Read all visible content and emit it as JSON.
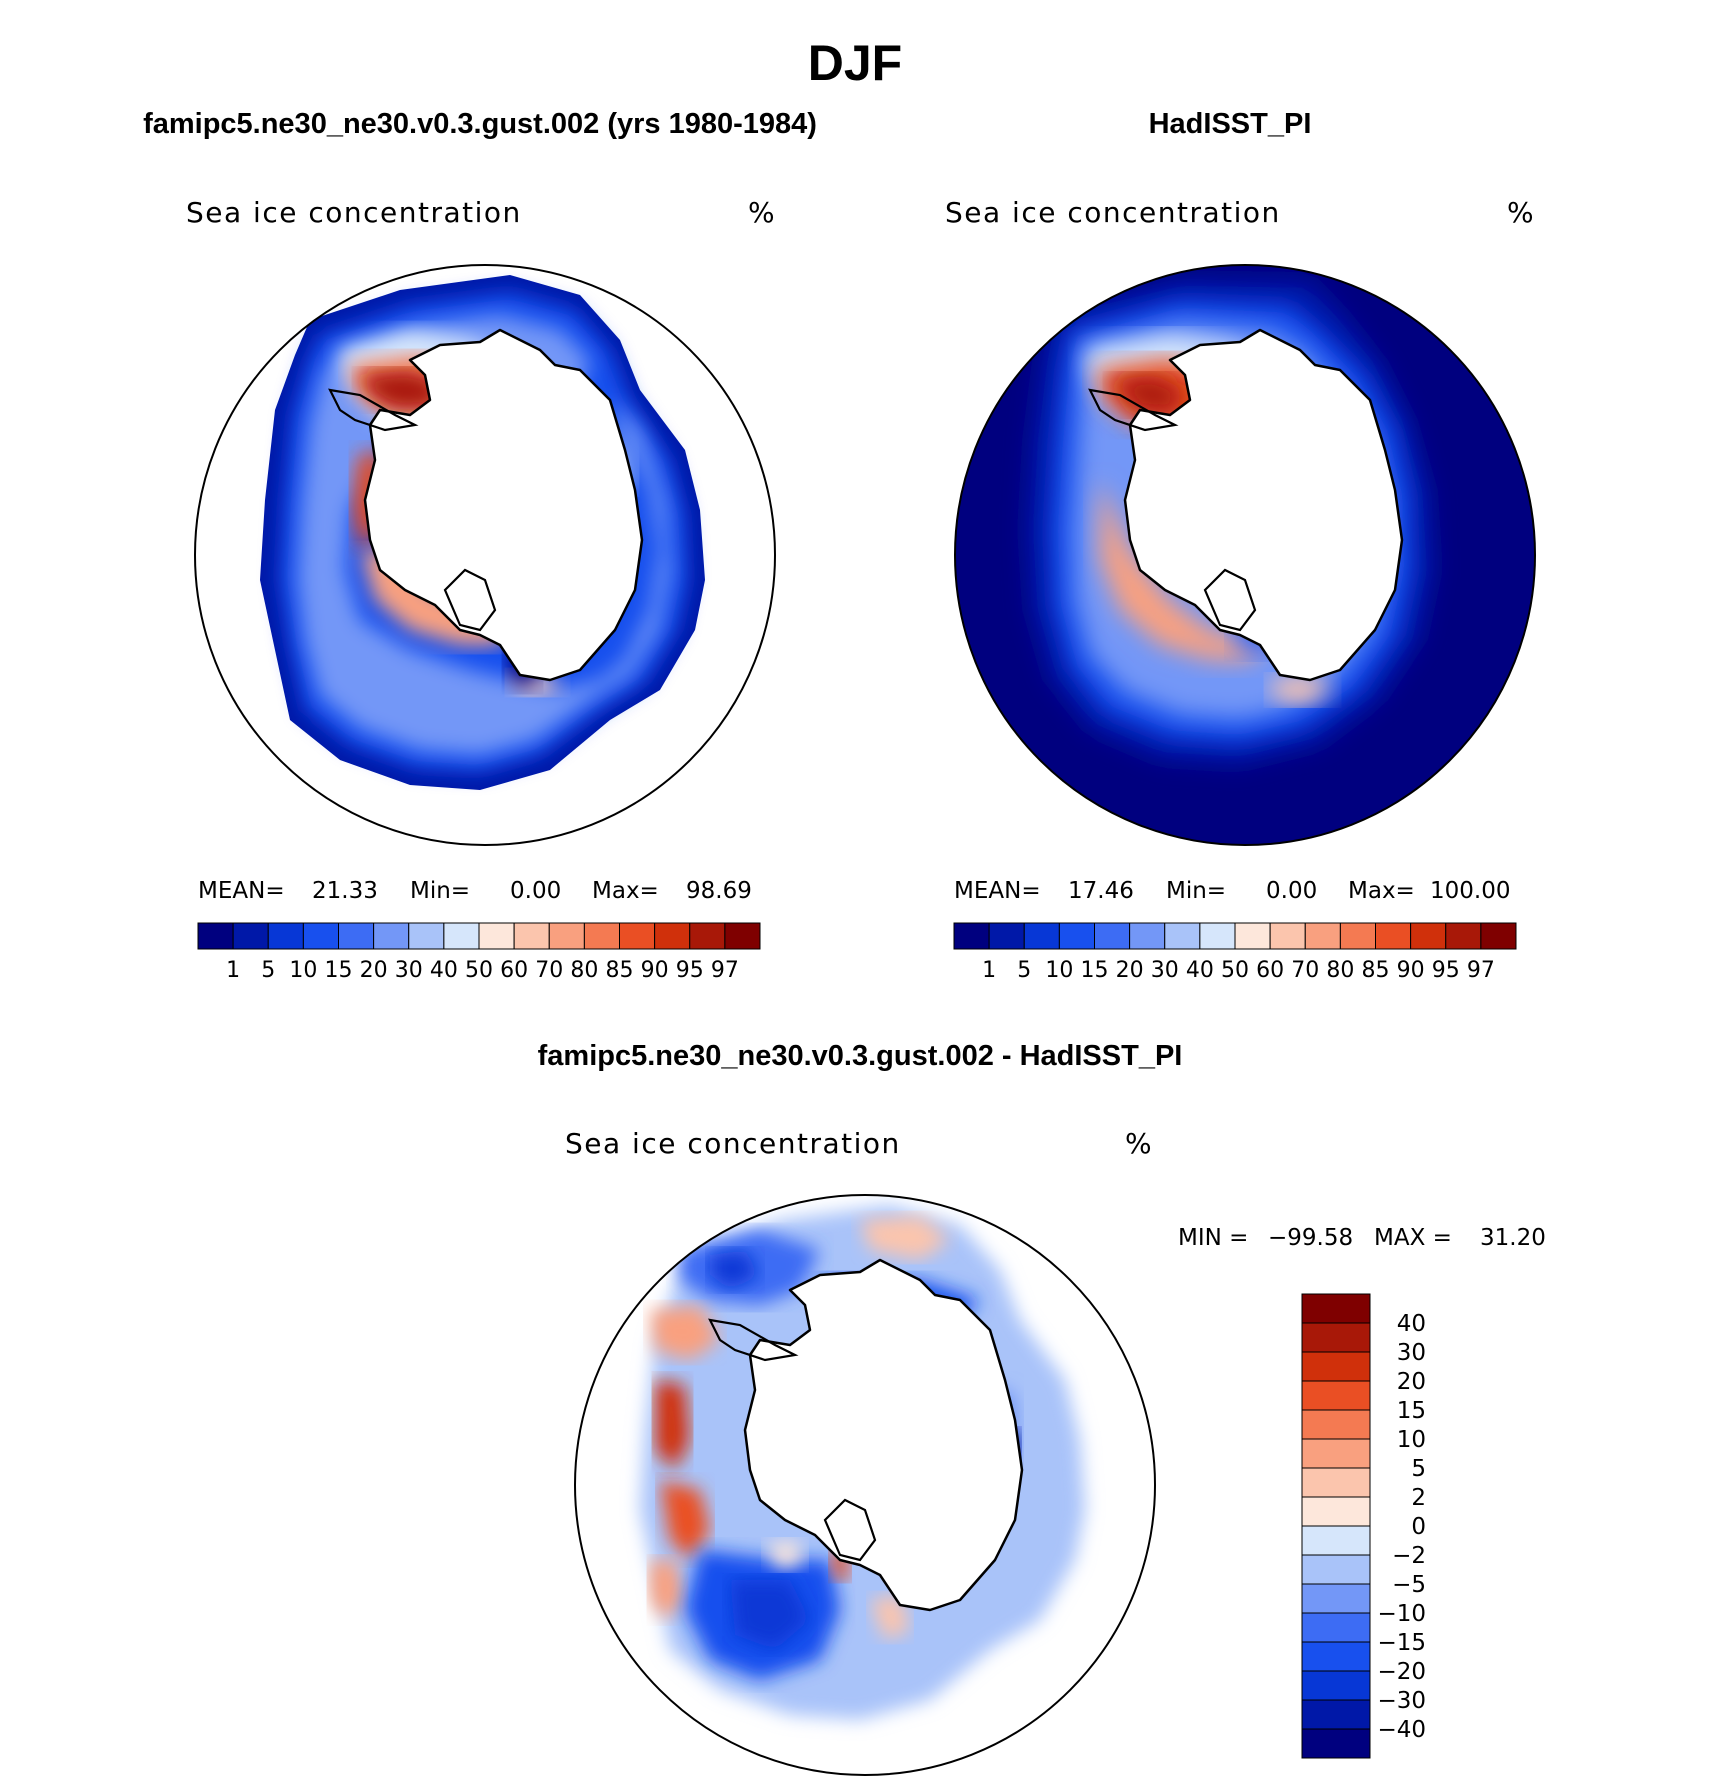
{
  "figure": {
    "title": "DJF"
  },
  "panels": {
    "left": {
      "title": "famipc5.ne30_ne30.v0.3.gust.002 (yrs 1980-1984)",
      "variable": "Sea ice concentration",
      "units": "%",
      "mean_label": "MEAN=",
      "mean_value": "21.33",
      "min_label": "Min=",
      "min_value": "0.00",
      "max_label": "Max=",
      "max_value": "98.69"
    },
    "right": {
      "title": "HadISST_PI",
      "variable": "Sea ice concentration",
      "units": "%",
      "mean_label": "MEAN=",
      "mean_value": "17.46",
      "min_label": "Min=",
      "min_value": "0.00",
      "max_label": "Max=",
      "max_value": "100.00"
    },
    "diff": {
      "title": "famipc5.ne30_ne30.v0.3.gust.002 - HadISST_PI",
      "variable": "Sea ice concentration",
      "units": "%",
      "min_label": "MIN =",
      "min_value": "−99.58",
      "max_label": "MAX =",
      "max_value": "31.20"
    }
  },
  "chart_data": [
    {
      "type": "heatmap",
      "projection": "south polar stereographic",
      "title": "famipc5.ne30_ne30.v0.3.gust.002 (yrs 1980-1984)",
      "variable": "Sea ice concentration",
      "units": "%",
      "stats": {
        "mean": 21.33,
        "min": 0.0,
        "max": 98.69
      },
      "levels": [
        1,
        5,
        10,
        15,
        20,
        30,
        40,
        50,
        60,
        70,
        80,
        85,
        90,
        95,
        97
      ],
      "colors": [
        "#00007f",
        "#0018a8",
        "#0737d6",
        "#1850ee",
        "#3d6cf4",
        "#7397f7",
        "#a9c3f9",
        "#d6e6fb",
        "#fde7db",
        "#fbc5ad",
        "#f9a07f",
        "#f47a52",
        "#ea4f24",
        "#d0300b",
        "#a81808",
        "#7f0000"
      ],
      "legend": "bottom (horizontal color bar)"
    },
    {
      "type": "heatmap",
      "projection": "south polar stereographic",
      "title": "HadISST_PI",
      "variable": "Sea ice concentration",
      "units": "%",
      "stats": {
        "mean": 17.46,
        "min": 0.0,
        "max": 100.0
      },
      "levels": [
        1,
        5,
        10,
        15,
        20,
        30,
        40,
        50,
        60,
        70,
        80,
        85,
        90,
        95,
        97
      ],
      "colors": [
        "#00007f",
        "#0018a8",
        "#0737d6",
        "#1850ee",
        "#3d6cf4",
        "#7397f7",
        "#a9c3f9",
        "#d6e6fb",
        "#fde7db",
        "#fbc5ad",
        "#f9a07f",
        "#f47a52",
        "#ea4f24",
        "#d0300b",
        "#a81808",
        "#7f0000"
      ],
      "legend": "bottom (horizontal color bar)"
    },
    {
      "type": "heatmap",
      "projection": "south polar stereographic",
      "title": "famipc5.ne30_ne30.v0.3.gust.002 - HadISST_PI",
      "variable": "Sea ice concentration",
      "units": "%",
      "stats": {
        "min": -99.58,
        "max": 31.2
      },
      "levels": [
        40,
        30,
        20,
        15,
        10,
        5,
        2,
        0,
        -2,
        -5,
        -10,
        -15,
        -20,
        -30,
        -40
      ],
      "level_labels": [
        "40",
        "30",
        "20",
        "15",
        "10",
        "5",
        "2",
        "0",
        "−2",
        "−5",
        "−10",
        "−15",
        "−20",
        "−30",
        "−40"
      ],
      "colors": [
        "#7f0000",
        "#a81808",
        "#d0300b",
        "#ea4f24",
        "#f47a52",
        "#f9a07f",
        "#fbc5ad",
        "#fde7db",
        "#d6e6fb",
        "#a9c3f9",
        "#7397f7",
        "#3d6cf4",
        "#1850ee",
        "#0737d6",
        "#0018a8",
        "#00007f"
      ],
      "legend": "right (vertical color bar)"
    }
  ]
}
